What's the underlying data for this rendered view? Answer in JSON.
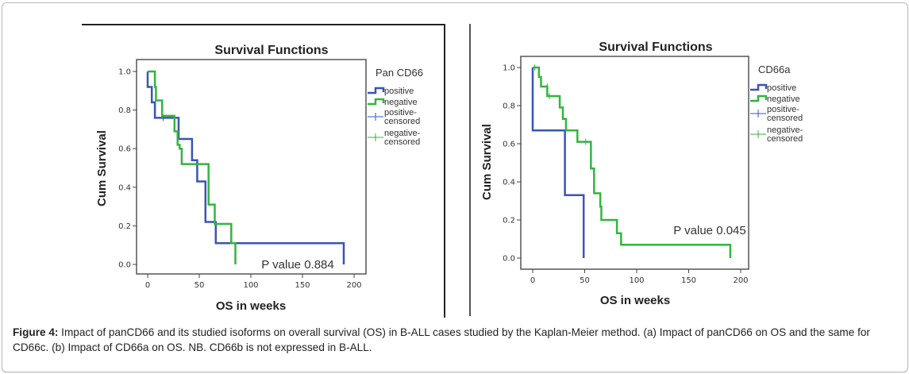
{
  "caption": {
    "label": "Figure 4:",
    "text": " Impact of panCD66 and its studied isoforms on overall survival (OS) in B-ALL cases studied by the Kaplan-Meier method. (a) Impact of panCD66 on OS and the same for CD66c. (b) Impact of CD66a on OS. NB. CD66b is not expressed in B-ALL."
  },
  "colors": {
    "positive": "#3a55b4",
    "negative": "#33b53f",
    "frame": "#555555"
  },
  "chart_data": [
    {
      "type": "line",
      "subtype": "kaplan-meier-step",
      "title": "Survival Functions",
      "xlabel": "OS in weeks",
      "ylabel": "Cum Survival",
      "xlim": [
        0,
        200
      ],
      "ylim": [
        0,
        1.0
      ],
      "xticks": [
        0,
        50,
        100,
        150,
        200
      ],
      "yticks": [
        "0.0",
        "0.2",
        "0.4",
        "0.6",
        "0.8",
        "1.0"
      ],
      "grid": false,
      "legend": {
        "title": "Pan CD66",
        "position": "right",
        "entries": [
          "positive",
          "negative",
          "positive-censored",
          "negative-censored"
        ]
      },
      "annotation": "P value 0.884",
      "series": [
        {
          "name": "positive",
          "steps": [
            [
              0,
              1.0
            ],
            [
              0,
              0.92
            ],
            [
              4,
              0.84
            ],
            [
              7,
              0.76
            ],
            [
              30,
              0.65
            ],
            [
              43,
              0.54
            ],
            [
              48,
              0.43
            ],
            [
              56,
              0.33
            ],
            [
              56,
              0.22
            ],
            [
              63,
              0.22
            ],
            [
              66,
              0.11
            ],
            [
              190,
              0.0
            ]
          ],
          "censored": [
            [
              15,
              0.76
            ]
          ]
        },
        {
          "name": "negative",
          "steps": [
            [
              0,
              1.0
            ],
            [
              7,
              0.92
            ],
            [
              8,
              0.85
            ],
            [
              14,
              0.77
            ],
            [
              26,
              0.69
            ],
            [
              29,
              0.62
            ],
            [
              31,
              0.6
            ],
            [
              33,
              0.52
            ],
            [
              59,
              0.31
            ],
            [
              65,
              0.21
            ],
            [
              81,
              0.11
            ],
            [
              85,
              0.0
            ]
          ],
          "censored": [
            [
              14,
              0.77
            ]
          ]
        }
      ]
    },
    {
      "type": "line",
      "subtype": "kaplan-meier-step",
      "title": "Survival Functions",
      "xlabel": "OS in weeks",
      "ylabel": "Cum Survival",
      "xlim": [
        0,
        200
      ],
      "ylim": [
        0,
        1.0
      ],
      "xticks": [
        0,
        50,
        100,
        150,
        200
      ],
      "yticks": [
        "0.0",
        "0.2",
        "0.4",
        "0.6",
        "0.8",
        "1.0"
      ],
      "grid": false,
      "legend": {
        "title": "CD66a",
        "position": "right",
        "entries": [
          "positive",
          "negative",
          "positive-censored",
          "negative-censored"
        ]
      },
      "annotation": "P value 0.045",
      "series": [
        {
          "name": "positive",
          "steps": [
            [
              0,
              1.0
            ],
            [
              0,
              0.67
            ],
            [
              31,
              0.33
            ],
            [
              49,
              0.0
            ]
          ],
          "censored": []
        },
        {
          "name": "negative",
          "steps": [
            [
              0,
              1.0
            ],
            [
              6,
              0.95
            ],
            [
              8,
              0.9
            ],
            [
              14,
              0.85
            ],
            [
              26,
              0.79
            ],
            [
              29,
              0.73
            ],
            [
              32,
              0.67
            ],
            [
              43,
              0.61
            ],
            [
              56,
              0.47
            ],
            [
              59,
              0.34
            ],
            [
              65,
              0.27
            ],
            [
              66,
              0.2
            ],
            [
              81,
              0.13
            ],
            [
              85,
              0.07
            ],
            [
              190,
              0.0
            ]
          ],
          "censored": [
            [
              2,
              1.0
            ],
            [
              14,
              0.9
            ],
            [
              16,
              0.85
            ],
            [
              51,
              0.61
            ]
          ]
        }
      ]
    }
  ]
}
